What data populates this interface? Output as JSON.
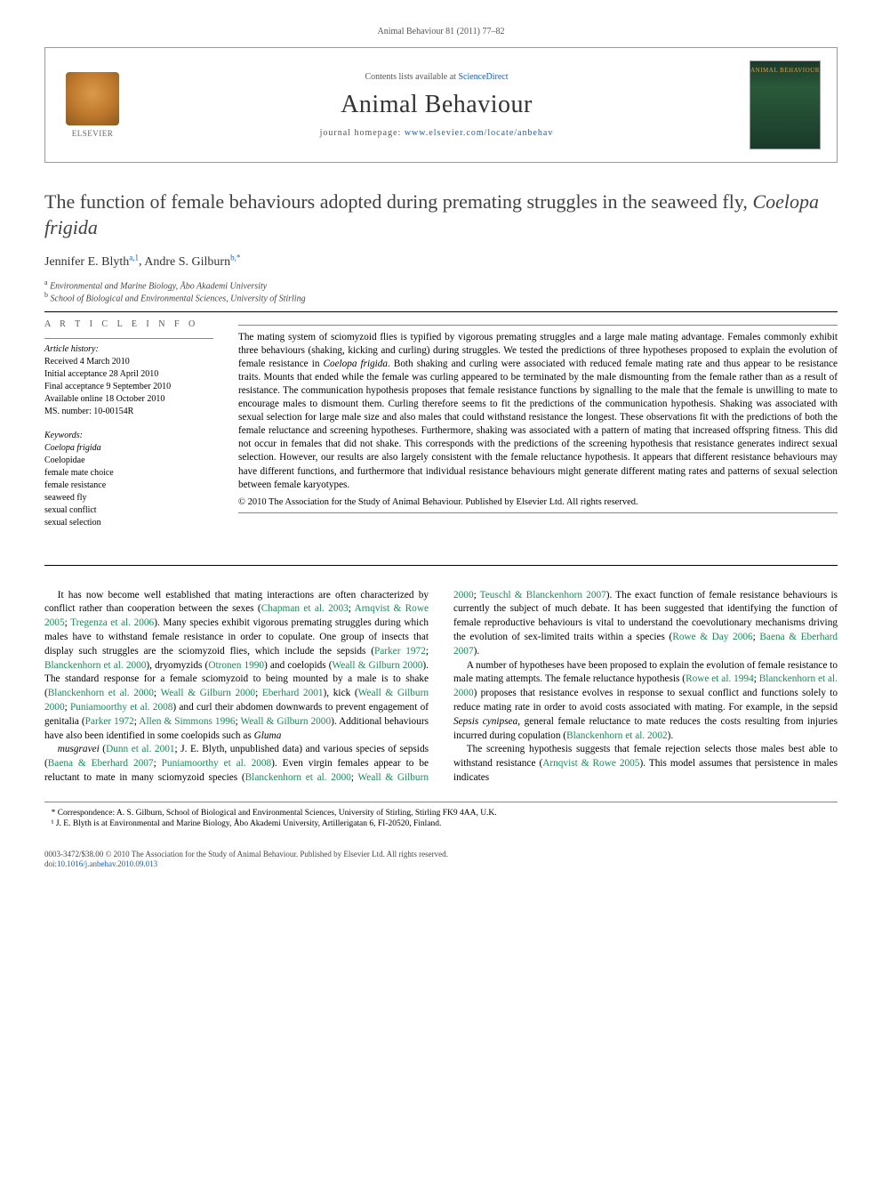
{
  "running_header": "Animal Behaviour 81 (2011) 77–82",
  "masthead": {
    "elsevier_label": "ELSEVIER",
    "contents_prefix": "Contents lists available at ",
    "contents_link": "ScienceDirect",
    "journal_name": "Animal Behaviour",
    "homepage_prefix": "journal homepage: ",
    "homepage_url": "www.elsevier.com/locate/anbehav",
    "cover_text": "ANIMAL BEHAVIOUR"
  },
  "title_plain": "The function of female behaviours adopted during premating struggles in the seaweed fly, ",
  "title_ital": "Coelopa frigida",
  "authors": [
    {
      "name": "Jennifer E. Blyth",
      "sup": "a,1"
    },
    {
      "name": "Andre S. Gilburn",
      "sup": "b,*"
    }
  ],
  "affiliations": [
    {
      "sup": "a",
      "text": "Environmental and Marine Biology, Åbo Akademi University"
    },
    {
      "sup": "b",
      "text": "School of Biological and Environmental Sciences, University of Stirling"
    }
  ],
  "article_info": {
    "heading": "A R T I C L E  I N F O",
    "history_head": "Article history:",
    "history": [
      "Received 4 March 2010",
      "Initial acceptance 28 April 2010",
      "Final acceptance 9 September 2010",
      "Available online 18 October 2010",
      "MS. number: 10-00154R"
    ],
    "keywords_head": "Keywords:",
    "keywords": [
      {
        "text": "Coelopa frigida",
        "ital": true
      },
      {
        "text": "Coelopidae",
        "ital": false
      },
      {
        "text": "female mate choice",
        "ital": false
      },
      {
        "text": "female resistance",
        "ital": false
      },
      {
        "text": "seaweed fly",
        "ital": false
      },
      {
        "text": "sexual conflict",
        "ital": false
      },
      {
        "text": "sexual selection",
        "ital": false
      }
    ]
  },
  "abstract": "The mating system of sciomyzoid flies is typified by vigorous premating struggles and a large male mating advantage. Females commonly exhibit three behaviours (shaking, kicking and curling) during struggles. We tested the predictions of three hypotheses proposed to explain the evolution of female resistance in <i>Coelopa frigida</i>. Both shaking and curling were associated with reduced female mating rate and thus appear to be resistance traits. Mounts that ended while the female was curling appeared to be terminated by the male dismounting from the female rather than as a result of resistance. The communication hypothesis proposes that female resistance functions by signalling to the male that the female is unwilling to mate to encourage males to dismount them. Curling therefore seems to fit the predictions of the communication hypothesis. Shaking was associated with sexual selection for large male size and also males that could withstand resistance the longest. These observations fit with the predictions of both the female reluctance and screening hypotheses. Furthermore, shaking was associated with a pattern of mating that increased offspring fitness. This did not occur in females that did not shake. This corresponds with the predictions of the screening hypothesis that resistance generates indirect sexual selection. However, our results are also largely consistent with the female reluctance hypothesis. It appears that different resistance behaviours may have different functions, and furthermore that individual resistance behaviours might generate different mating rates and patterns of sexual selection between female karyotypes.",
  "copyright": "© 2010 The Association for the Study of Animal Behaviour. Published by Elsevier Ltd. All rights reserved.",
  "body_paras": [
    "It has now become well established that mating interactions are often characterized by conflict rather than cooperation between the sexes (<a>Chapman et al. 2003</a>; <a>Arnqvist & Rowe 2005</a>; <a>Tregenza et al. 2006</a>). Many species exhibit vigorous premating struggles during which males have to withstand female resistance in order to copulate. One group of insects that display such struggles are the sciomyzoid flies, which include the sepsids (<a>Parker 1972</a>; <a>Blanckenhorn et al. 2000</a>), dryomyzids (<a>Otronen 1990</a>) and coelopids (<a>Weall & Gilburn 2000</a>). The standard response for a female sciomyzoid to being mounted by a male is to shake (<a>Blanckenhorn et al. 2000</a>; <a>Weall & Gilburn 2000</a>; <a>Eberhard 2001</a>), kick (<a>Weall & Gilburn 2000</a>; <a>Puniamoorthy et al. 2008</a>) and curl their abdomen downwards to prevent engagement of genitalia (<a>Parker 1972</a>; <a>Allen & Simmons 1996</a>; <a>Weall & Gilburn 2000</a>). Additional behaviours have also been identified in some coelopids such as <i>Gluma</i>",
    "<i>musgravei</i> (<a>Dunn et al. 2001</a>; J. E. Blyth, unpublished data) and various species of sepsids (<a>Baena & Eberhard 2007</a>; <a>Puniamoorthy et al. 2008</a>). Even virgin females appear to be reluctant to mate in many sciomyzoid species (<a>Blanckenhorn et al. 2000</a>; <a>Weall & Gilburn 2000</a>; <a>Teuschl & Blanckenhorn 2007</a>). The exact function of female resistance behaviours is currently the subject of much debate. It has been suggested that identifying the function of female reproductive behaviours is vital to understand the coevolutionary mechanisms driving the evolution of sex-limited traits within a species (<a>Rowe & Day 2006</a>; <a>Baena & Eberhard 2007</a>).",
    "A number of hypotheses have been proposed to explain the evolution of female resistance to male mating attempts. The female reluctance hypothesis (<a>Rowe et al. 1994</a>; <a>Blanckenhorn et al. 2000</a>) proposes that resistance evolves in response to sexual conflict and functions solely to reduce mating rate in order to avoid costs associated with mating. For example, in the sepsid <i>Sepsis cynipsea</i>, general female reluctance to mate reduces the costs resulting from injuries incurred during copulation (<a>Blanckenhorn et al. 2002</a>).",
    "The screening hypothesis suggests that female rejection selects those males best able to withstand resistance (<a>Arnqvist & Rowe 2005</a>). This model assumes that persistence in males indicates"
  ],
  "footnotes": [
    "* Correspondence: A. S. Gilburn, School of Biological and Environmental Sciences, University of Stirling, Stirling FK9 4AA, U.K.",
    "¹ J. E. Blyth is at Environmental and Marine Biology, Åbo Akademi University, Artillerigatan 6, FI-20520, Finland."
  ],
  "doi": {
    "issn_line": "0003-3472/$38.00 © 2010 The Association for the Study of Animal Behaviour. Published by Elsevier Ltd. All rights reserved.",
    "doi_prefix": "doi:",
    "doi_value": "10.1016/j.anbehav.2010.09.013"
  }
}
